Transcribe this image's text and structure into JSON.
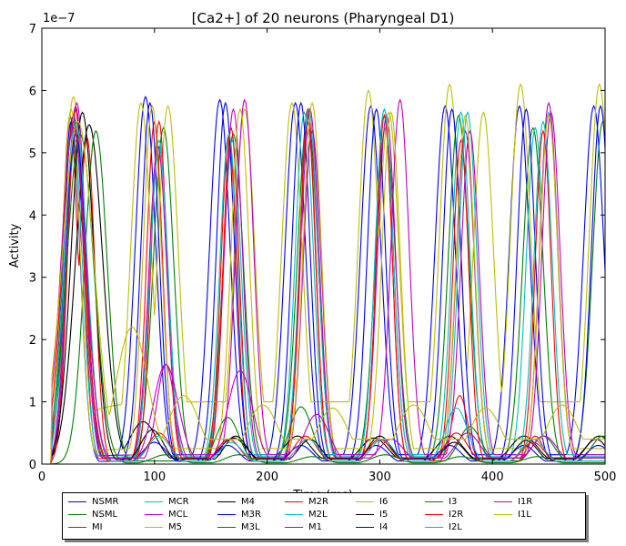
{
  "chart_data": {
    "type": "line",
    "title": "[Ca2+] of 20 neurons (Pharyngeal D1)",
    "xlabel": "Time (ms)",
    "ylabel": "Activity",
    "y_scale_label": "1e−7",
    "xlim": [
      0,
      500
    ],
    "ylim": [
      0,
      7
    ],
    "x_ticks": [
      0,
      100,
      200,
      300,
      400,
      500
    ],
    "y_ticks": [
      0,
      1,
      2,
      3,
      4,
      5,
      6,
      7
    ],
    "legend_location": "below plot",
    "y_unit_multiplier": 1e-07,
    "series": [
      {
        "name": "NSMR",
        "color": "#0000ff",
        "peaks": [
          [
            28,
            5.6
          ],
          [
            92,
            5.9
          ],
          [
            158,
            5.85
          ],
          [
            225,
            5.8
          ],
          [
            292,
            5.75
          ],
          [
            358,
            5.75
          ],
          [
            424,
            5.75
          ],
          [
            490,
            5.75
          ]
        ],
        "width": 9,
        "baseline": 0.15
      },
      {
        "name": "NSML",
        "color": "#008000",
        "peaks": [
          [
            30,
            5.2
          ],
          [
            108,
            5.4
          ],
          [
            170,
            5.3
          ],
          [
            236,
            5.6
          ],
          [
            305,
            5.4
          ],
          [
            370,
            5.6
          ],
          [
            436,
            5.4
          ],
          [
            498,
            5.5
          ]
        ],
        "width": 9,
        "baseline": 0.1
      },
      {
        "name": "MI",
        "color": "#ff0000",
        "peaks": [
          [
            25,
            5.6
          ],
          [
            40,
            5.25
          ],
          [
            100,
            5.5
          ],
          [
            166,
            5.25
          ],
          [
            236,
            5.7
          ],
          [
            304,
            5.6
          ],
          [
            371,
            1.1
          ],
          [
            438,
            0.45
          ]
        ],
        "width": 7,
        "baseline": 0.05
      },
      {
        "name": "MCR",
        "color": "#00bfbf",
        "peaks": [
          [
            30,
            5.4
          ],
          [
            104,
            5.2
          ],
          [
            169,
            5.2
          ],
          [
            237,
            5.7
          ],
          [
            304,
            5.7
          ],
          [
            372,
            5.65
          ],
          [
            438,
            5.4
          ],
          [
            450,
            5.65
          ]
        ],
        "width": 8,
        "baseline": 0.12
      },
      {
        "name": "MCL",
        "color": "#bf00bf",
        "peaks": [
          [
            31,
            5.8
          ],
          [
            110,
            1.6
          ],
          [
            170,
            5.7
          ],
          [
            238,
            5.7
          ],
          [
            306,
            5.6
          ],
          [
            376,
            5.35
          ],
          [
            450,
            5.8
          ]
        ],
        "width": 8,
        "baseline": 0.1
      },
      {
        "name": "M5",
        "color": "#bfbf00",
        "peaks": [
          [
            28,
            5.9
          ],
          [
            88,
            5.8
          ],
          [
            112,
            5.75
          ],
          [
            180,
            5.7
          ],
          [
            222,
            5.8
          ],
          [
            290,
            6.0
          ],
          [
            308,
            5.65
          ],
          [
            362,
            6.1
          ],
          [
            392,
            5.65
          ],
          [
            425,
            6.1
          ],
          [
            495,
            6.1
          ]
        ],
        "width": 9,
        "baseline": 1.0
      },
      {
        "name": "M4",
        "color": "#000000",
        "peaks": [
          [
            42,
            5.45
          ],
          [
            90,
            0.68
          ],
          [
            170,
            0.42
          ],
          [
            227,
            0.45
          ],
          [
            295,
            0.42
          ],
          [
            362,
            0.45
          ],
          [
            428,
            0.45
          ],
          [
            495,
            0.45
          ]
        ],
        "width": 12,
        "baseline": 0.1
      },
      {
        "name": "M3R",
        "color": "#0000ff",
        "peaks": [
          [
            26,
            5.5
          ],
          [
            96,
            5.8
          ],
          [
            163,
            5.8
          ],
          [
            230,
            5.8
          ],
          [
            297,
            5.7
          ],
          [
            364,
            5.7
          ],
          [
            430,
            5.7
          ],
          [
            496,
            5.75
          ]
        ],
        "width": 8,
        "baseline": 0.05
      },
      {
        "name": "M3L",
        "color": "#008000",
        "peaks": [
          [
            48,
            5.35
          ],
          [
            165,
            0.75
          ],
          [
            230,
            0.92
          ],
          [
            300,
            0.4
          ],
          [
            380,
            0.6
          ],
          [
            445,
            0.45
          ],
          [
            498,
            0.45
          ]
        ],
        "width": 10,
        "baseline": 0.05
      },
      {
        "name": "M2R",
        "color": "#ff0000",
        "peaks": [
          [
            30,
            5.7
          ],
          [
            104,
            5.5
          ],
          [
            168,
            5.4
          ],
          [
            236,
            5.5
          ],
          [
            304,
            5.6
          ],
          [
            372,
            5.2
          ],
          [
            445,
            5.35
          ]
        ],
        "width": 7,
        "baseline": 0.1
      },
      {
        "name": "M2L",
        "color": "#00bfbf",
        "peaks": [
          [
            28,
            5.3
          ],
          [
            104,
            5.1
          ],
          [
            166,
            5.3
          ],
          [
            233,
            5.65
          ],
          [
            304,
            5.7
          ],
          [
            378,
            5.65
          ],
          [
            445,
            5.5
          ]
        ],
        "width": 8,
        "baseline": 0.15
      },
      {
        "name": "M1",
        "color": "#bf00bf",
        "peaks": [
          [
            30,
            5.75
          ],
          [
            103,
            5.1
          ],
          [
            180,
            5.85
          ],
          [
            240,
            5.35
          ],
          [
            318,
            5.85
          ],
          [
            380,
            5.35
          ],
          [
            452,
            5.65
          ]
        ],
        "width": 8,
        "baseline": 0.15
      },
      {
        "name": "I6",
        "color": "#bfbf00",
        "peaks": [
          [
            26,
            5.7
          ],
          [
            98,
            5.75
          ],
          [
            176,
            5.7
          ],
          [
            240,
            5.8
          ],
          [
            310,
            5.65
          ],
          [
            376,
            5.6
          ],
          [
            450,
            5.6
          ]
        ],
        "width": 8,
        "baseline": 0.25
      },
      {
        "name": "I5",
        "color": "#000000",
        "peaks": [
          [
            36,
            5.65
          ],
          [
            98,
            0.55
          ],
          [
            172,
            0.45
          ],
          [
            238,
            0.4
          ],
          [
            300,
            0.45
          ],
          [
            366,
            0.35
          ],
          [
            430,
            0.38
          ],
          [
            492,
            0.4
          ]
        ],
        "width": 10,
        "baseline": 0.08
      },
      {
        "name": "I4",
        "color": "#0000ff",
        "peaks": [
          [
            30,
            5.3
          ],
          [
            100,
            0.35
          ],
          [
            165,
            0.3
          ],
          [
            230,
            0.3
          ],
          [
            297,
            0.3
          ],
          [
            362,
            0.3
          ],
          [
            428,
            0.3
          ],
          [
            494,
            0.3
          ]
        ],
        "width": 10,
        "baseline": 0.05
      },
      {
        "name": "I3",
        "color": "#008000",
        "peaks": [
          [
            34,
            5.3
          ],
          [
            110,
            0.15
          ],
          [
            175,
            0.15
          ],
          [
            240,
            0.12
          ],
          [
            305,
            0.15
          ],
          [
            372,
            0.12
          ],
          [
            440,
            0.12
          ]
        ],
        "width": 12,
        "baseline": 0.02
      },
      {
        "name": "I2R",
        "color": "#ff0000",
        "peaks": [
          [
            28,
            5.5
          ],
          [
            104,
            0.5
          ],
          [
            166,
            0.4
          ],
          [
            234,
            0.45
          ],
          [
            300,
            0.4
          ],
          [
            368,
            0.5
          ],
          [
            436,
            0.35
          ]
        ],
        "width": 10,
        "baseline": 0.05
      },
      {
        "name": "I2L",
        "color": "#00bfbf",
        "peaks": [
          [
            30,
            5.5
          ],
          [
            104,
            0.45
          ],
          [
            168,
            0.35
          ],
          [
            236,
            0.4
          ],
          [
            302,
            0.4
          ],
          [
            368,
            0.9
          ],
          [
            436,
            0.4
          ]
        ],
        "width": 10,
        "baseline": 0.05
      },
      {
        "name": "I1R",
        "color": "#bf00bf",
        "peaks": [
          [
            28,
            5.4
          ],
          [
            110,
            1.6
          ],
          [
            176,
            1.5
          ],
          [
            244,
            0.8
          ],
          [
            310,
            0.4
          ],
          [
            378,
            0.5
          ],
          [
            446,
            0.45
          ]
        ],
        "width": 11,
        "baseline": 0.1
      },
      {
        "name": "I1L",
        "color": "#bfbf00",
        "peaks": [
          [
            32,
            5.5
          ],
          [
            80,
            2.2
          ],
          [
            126,
            1.1
          ],
          [
            196,
            0.95
          ],
          [
            258,
            0.9
          ],
          [
            330,
            0.95
          ],
          [
            394,
            0.9
          ],
          [
            462,
            0.95
          ]
        ],
        "width": 14,
        "baseline": 0.4
      }
    ]
  }
}
